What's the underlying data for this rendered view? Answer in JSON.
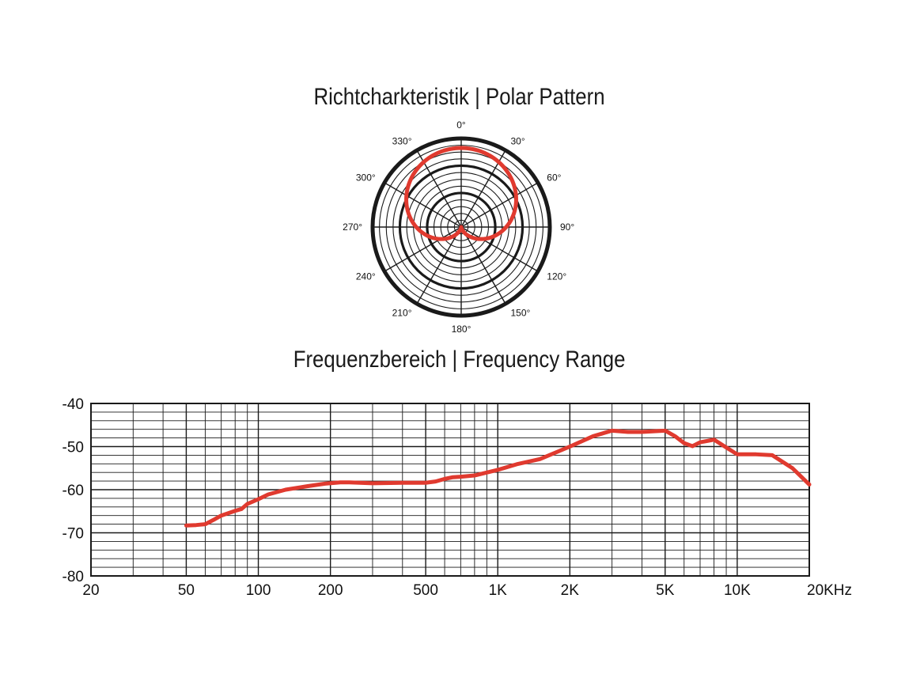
{
  "colors": {
    "accent": "#e03a2f",
    "ink": "#1a1a1a"
  },
  "chart_data": [
    {
      "type": "polar",
      "title": "Richtcharkteristik | Polar Pattern",
      "angle_labels": [
        "0°",
        "30°",
        "60°",
        "90°",
        "120°",
        "150°",
        "180°",
        "210°",
        "240°",
        "270°",
        "300°",
        "330°"
      ],
      "angles_deg": [
        0,
        30,
        60,
        90,
        120,
        150,
        180,
        210,
        240,
        270,
        300,
        330
      ],
      "pattern": "cardioid",
      "series": [
        {
          "angles_deg": [
            0,
            30,
            60,
            90,
            120,
            150,
            180,
            210,
            240,
            270,
            300,
            330
          ],
          "relative_level": [
            1.0,
            0.93,
            0.75,
            0.5,
            0.25,
            0.07,
            0.0,
            0.07,
            0.25,
            0.5,
            0.75,
            0.93
          ]
        }
      ]
    },
    {
      "type": "line",
      "title": "Frequenzbereich | Frequency Range",
      "xscale": "log",
      "xlim": [
        20,
        20000
      ],
      "ylim": [
        -80,
        -40
      ],
      "grid": true,
      "x_tick_values": [
        20,
        50,
        100,
        200,
        500,
        1000,
        2000,
        5000,
        10000,
        20000
      ],
      "x_tick_labels": [
        "20",
        "50",
        "100",
        "200",
        "500",
        "1K",
        "2K",
        "5K",
        "10K",
        "20KHz"
      ],
      "y_tick_values": [
        -40,
        -50,
        -60,
        -70,
        -80
      ],
      "y_tick_labels": [
        "-40",
        "-50",
        "-60",
        "-70",
        "-80"
      ],
      "series": [
        {
          "x": [
            50,
            55,
            60,
            65,
            70,
            80,
            85,
            90,
            100,
            110,
            130,
            160,
            190,
            220,
            240,
            300,
            400,
            500,
            550,
            600,
            650,
            700,
            800,
            1000,
            1200,
            1500,
            2000,
            2500,
            3000,
            3500,
            4000,
            5000,
            5500,
            6000,
            6500,
            7000,
            8000,
            9000,
            10000,
            12000,
            14000,
            17000,
            20000
          ],
          "y": [
            -68.3,
            -68.2,
            -68.0,
            -67.0,
            -66.0,
            -64.9,
            -64.5,
            -63.3,
            -62.2,
            -61.1,
            -60.0,
            -59.2,
            -58.6,
            -58.3,
            -58.3,
            -58.5,
            -58.4,
            -58.4,
            -58.1,
            -57.5,
            -57.1,
            -57.0,
            -56.7,
            -55.4,
            -54.1,
            -52.9,
            -50.0,
            -47.6,
            -46.3,
            -46.6,
            -46.6,
            -46.3,
            -47.6,
            -49.2,
            -49.9,
            -49.0,
            -48.4,
            -50.2,
            -51.8,
            -51.8,
            -52.0,
            -55.0,
            -58.8
          ]
        }
      ]
    }
  ]
}
